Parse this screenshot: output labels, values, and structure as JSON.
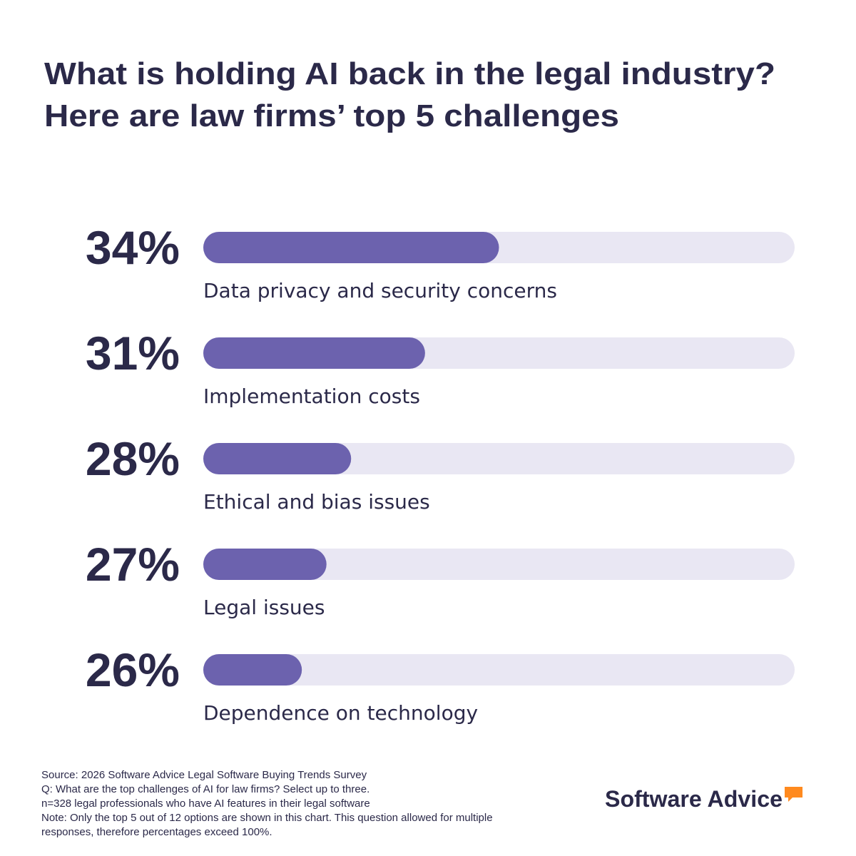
{
  "chart_data": {
    "type": "bar",
    "title": [
      "What is holding AI back in the legal industry?",
      "Here are law firms’ top 5 challenges"
    ],
    "categories": [
      "Data privacy and security concerns",
      "Implementation costs",
      "Ethical and bias issues",
      "Legal issues",
      "Dependence on technology"
    ],
    "values": [
      34,
      31,
      28,
      27,
      26
    ],
    "value_labels": [
      "34%",
      "31%",
      "28%",
      "27%",
      "26%"
    ],
    "color": "#6c62ae",
    "track_color": "#e9e7f3",
    "xlim": [
      22,
      46
    ],
    "notes": [
      "Source: 2026 Software Advice Legal Software Buying Trends Survey",
      "Q: What are the top challenges of AI for law firms? Select up to three.",
      "n=328 legal professionals who have AI features in their legal software",
      "Note: Only the top 5 out of 12 options are shown in this chart. This question allowed for multiple",
      "responses, therefore percentages exceed 100%."
    ],
    "brand": "Software Advice"
  }
}
